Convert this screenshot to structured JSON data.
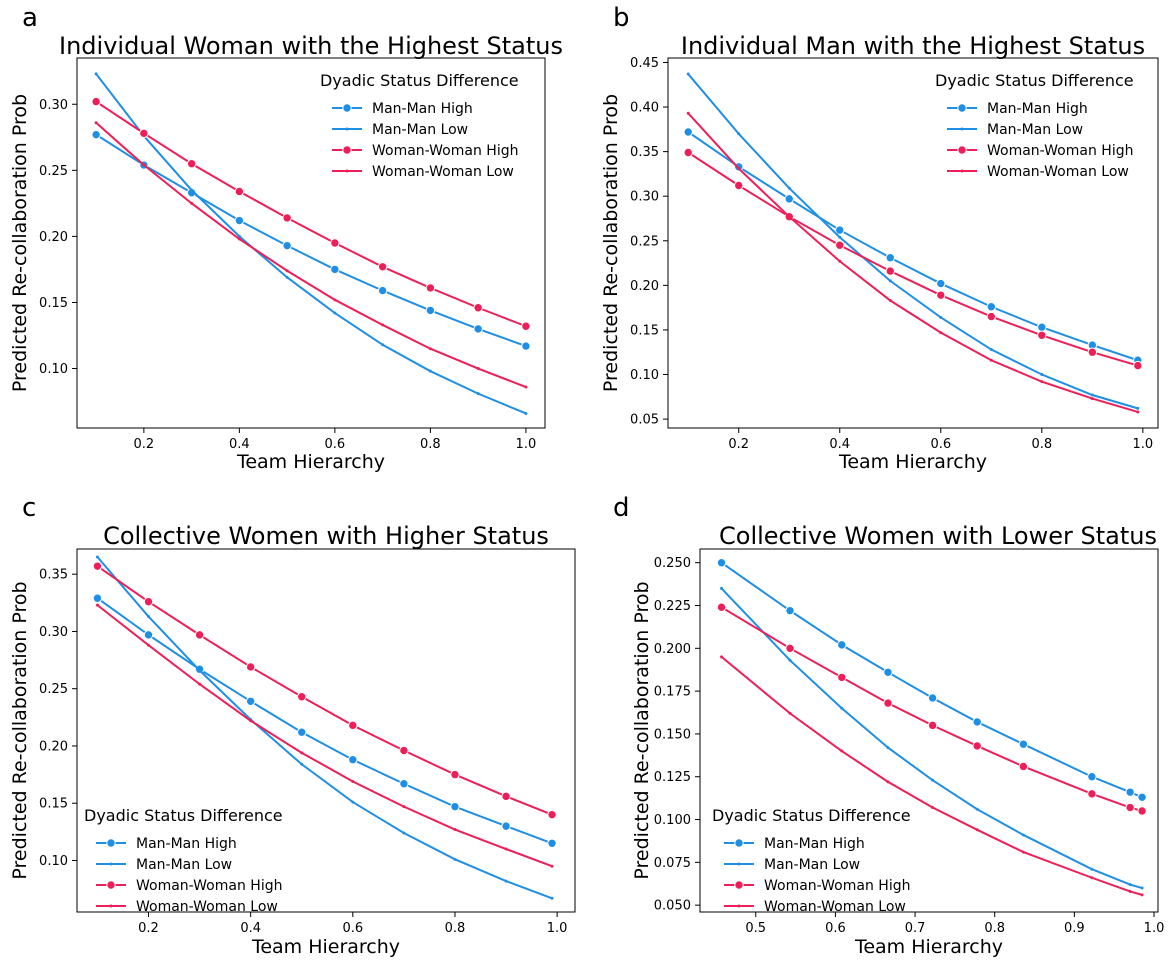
{
  "colors": {
    "man_man": "#1f8fe5",
    "woman_woman": "#ee1f58"
  },
  "chart_data": [
    {
      "type": "line",
      "panel": "a",
      "title": "Individual Woman with the Highest Status",
      "xlabel": "Team Hierarchy",
      "ylabel": "Predicted Re-collaboration Prob",
      "xlim": [
        0.06,
        1.04
      ],
      "ylim": [
        0.055,
        0.335
      ],
      "xticks": [
        0.2,
        0.4,
        0.6,
        0.8,
        1.0
      ],
      "xtick_labels": [
        "0.2",
        "0.4",
        "0.6",
        "0.8",
        "1.0"
      ],
      "yticks": [
        0.1,
        0.15,
        0.2,
        0.25,
        0.3
      ],
      "ytick_labels": [
        "0.10",
        "0.15",
        "0.20",
        "0.25",
        "0.30"
      ],
      "legend": {
        "title": "Dyadic Status Difference",
        "placement": "top-right"
      },
      "series": [
        {
          "name": "Man-Man High",
          "color": "#1f8fe5",
          "marker": "circle",
          "x": [
            0.1,
            0.2,
            0.3,
            0.4,
            0.5,
            0.6,
            0.7,
            0.8,
            0.9,
            1.0
          ],
          "y": [
            0.277,
            0.254,
            0.233,
            0.212,
            0.193,
            0.175,
            0.159,
            0.144,
            0.13,
            0.117
          ]
        },
        {
          "name": "Man-Man Low",
          "color": "#1f8fe5",
          "marker": "dot",
          "x": [
            0.1,
            0.2,
            0.3,
            0.4,
            0.5,
            0.6,
            0.7,
            0.8,
            0.9,
            1.0
          ],
          "y": [
            0.323,
            0.276,
            0.235,
            0.2,
            0.169,
            0.142,
            0.118,
            0.098,
            0.081,
            0.066
          ]
        },
        {
          "name": "Woman-Woman High",
          "color": "#ee1f58",
          "marker": "circle",
          "x": [
            0.1,
            0.2,
            0.3,
            0.4,
            0.5,
            0.6,
            0.7,
            0.8,
            0.9,
            1.0
          ],
          "y": [
            0.302,
            0.278,
            0.255,
            0.234,
            0.214,
            0.195,
            0.177,
            0.161,
            0.146,
            0.132
          ]
        },
        {
          "name": "Woman-Woman Low",
          "color": "#ee1f58",
          "marker": "dot",
          "x": [
            0.1,
            0.2,
            0.3,
            0.4,
            0.5,
            0.6,
            0.7,
            0.8,
            0.9,
            1.0
          ],
          "y": [
            0.286,
            0.254,
            0.225,
            0.198,
            0.174,
            0.152,
            0.133,
            0.115,
            0.1,
            0.086
          ]
        }
      ]
    },
    {
      "type": "line",
      "panel": "b",
      "title": "Individual Man with the Highest Status",
      "xlabel": "Team Hierarchy",
      "ylabel": "Predicted Re-collaboration Prob",
      "xlim": [
        0.06,
        1.03
      ],
      "ylim": [
        0.04,
        0.455
      ],
      "xticks": [
        0.2,
        0.4,
        0.6,
        0.8,
        1.0
      ],
      "xtick_labels": [
        "0.2",
        "0.4",
        "0.6",
        "0.8",
        "1.0"
      ],
      "yticks": [
        0.05,
        0.1,
        0.15,
        0.2,
        0.25,
        0.3,
        0.35,
        0.4,
        0.45
      ],
      "ytick_labels": [
        "0.05",
        "0.10",
        "0.15",
        "0.20",
        "0.25",
        "0.30",
        "0.35",
        "0.40",
        "0.45"
      ],
      "legend": {
        "title": "Dyadic Status Difference",
        "placement": "top-right"
      },
      "series": [
        {
          "name": "Man-Man High",
          "color": "#1f8fe5",
          "marker": "circle",
          "x": [
            0.1,
            0.2,
            0.3,
            0.4,
            0.5,
            0.6,
            0.7,
            0.8,
            0.9,
            0.99
          ],
          "y": [
            0.372,
            0.333,
            0.297,
            0.262,
            0.231,
            0.202,
            0.176,
            0.153,
            0.133,
            0.116
          ]
        },
        {
          "name": "Man-Man Low",
          "color": "#1f8fe5",
          "marker": "dot",
          "x": [
            0.1,
            0.2,
            0.3,
            0.4,
            0.5,
            0.6,
            0.7,
            0.8,
            0.9,
            0.99
          ],
          "y": [
            0.437,
            0.37,
            0.309,
            0.254,
            0.205,
            0.164,
            0.128,
            0.1,
            0.077,
            0.062
          ]
        },
        {
          "name": "Woman-Woman High",
          "color": "#ee1f58",
          "marker": "circle",
          "x": [
            0.1,
            0.2,
            0.3,
            0.4,
            0.5,
            0.6,
            0.7,
            0.8,
            0.9,
            0.99
          ],
          "y": [
            0.349,
            0.312,
            0.277,
            0.245,
            0.216,
            0.189,
            0.165,
            0.144,
            0.125,
            0.11
          ]
        },
        {
          "name": "Woman-Woman Low",
          "color": "#ee1f58",
          "marker": "dot",
          "x": [
            0.1,
            0.2,
            0.3,
            0.4,
            0.5,
            0.6,
            0.7,
            0.8,
            0.9,
            0.99
          ],
          "y": [
            0.393,
            0.331,
            0.277,
            0.227,
            0.183,
            0.147,
            0.116,
            0.092,
            0.073,
            0.058
          ]
        }
      ]
    },
    {
      "type": "line",
      "panel": "c",
      "title": "Collective Women with Higher Status",
      "xlabel": "Team Hierarchy",
      "ylabel": "Predicted Re-collaboration Prob",
      "xlim": [
        0.06,
        1.035
      ],
      "ylim": [
        0.055,
        0.372
      ],
      "xticks": [
        0.2,
        0.4,
        0.6,
        0.8,
        1.0
      ],
      "xtick_labels": [
        "0.2",
        "0.4",
        "0.6",
        "0.8",
        "1.0"
      ],
      "yticks": [
        0.1,
        0.15,
        0.2,
        0.25,
        0.3,
        0.35
      ],
      "ytick_labels": [
        "0.10",
        "0.15",
        "0.20",
        "0.25",
        "0.30",
        "0.35"
      ],
      "legend": {
        "title": "Dyadic Status Difference",
        "placement": "bottom-left"
      },
      "series": [
        {
          "name": "Man-Man High",
          "color": "#1f8fe5",
          "marker": "circle",
          "x": [
            0.1,
            0.2,
            0.3,
            0.4,
            0.5,
            0.6,
            0.7,
            0.8,
            0.9,
            0.99
          ],
          "y": [
            0.329,
            0.297,
            0.267,
            0.239,
            0.212,
            0.188,
            0.167,
            0.147,
            0.13,
            0.115
          ]
        },
        {
          "name": "Man-Man Low",
          "color": "#1f8fe5",
          "marker": "dot",
          "x": [
            0.1,
            0.2,
            0.3,
            0.4,
            0.5,
            0.6,
            0.7,
            0.8,
            0.9,
            0.99
          ],
          "y": [
            0.365,
            0.313,
            0.266,
            0.223,
            0.184,
            0.151,
            0.124,
            0.101,
            0.082,
            0.067
          ]
        },
        {
          "name": "Woman-Woman High",
          "color": "#ee1f58",
          "marker": "circle",
          "x": [
            0.1,
            0.2,
            0.3,
            0.4,
            0.5,
            0.6,
            0.7,
            0.8,
            0.9,
            0.99
          ],
          "y": [
            0.357,
            0.326,
            0.297,
            0.269,
            0.243,
            0.218,
            0.196,
            0.175,
            0.156,
            0.14
          ]
        },
        {
          "name": "Woman-Woman Low",
          "color": "#ee1f58",
          "marker": "dot",
          "x": [
            0.1,
            0.2,
            0.3,
            0.4,
            0.5,
            0.6,
            0.7,
            0.8,
            0.9,
            0.99
          ],
          "y": [
            0.323,
            0.288,
            0.254,
            0.222,
            0.194,
            0.169,
            0.147,
            0.127,
            0.11,
            0.095
          ]
        }
      ]
    },
    {
      "type": "line",
      "panel": "d",
      "title": "Collective Women with Lower Status",
      "xlabel": "Team Hierarchy",
      "ylabel": "Predicted Re-collaboration Prob",
      "xlim": [
        0.43,
        1.005
      ],
      "ylim": [
        0.046,
        0.258
      ],
      "xticks": [
        0.5,
        0.6,
        0.7,
        0.8,
        0.9,
        1.0
      ],
      "xtick_labels": [
        "0.5",
        "0.6",
        "0.7",
        "0.8",
        "0.9",
        "1.0"
      ],
      "yticks": [
        0.05,
        0.075,
        0.1,
        0.125,
        0.15,
        0.175,
        0.2,
        0.225,
        0.25
      ],
      "ytick_labels": [
        "0.050",
        "0.075",
        "0.100",
        "0.125",
        "0.150",
        "0.175",
        "0.200",
        "0.225",
        "0.250"
      ],
      "legend": {
        "title": "Dyadic Status Difference",
        "placement": "bottom-left"
      },
      "series": [
        {
          "name": "Man-Man High",
          "color": "#1f8fe5",
          "marker": "circle",
          "x": [
            0.457,
            0.543,
            0.608,
            0.666,
            0.722,
            0.778,
            0.836,
            0.922,
            0.97,
            0.985
          ],
          "y": [
            0.25,
            0.222,
            0.202,
            0.186,
            0.171,
            0.157,
            0.144,
            0.125,
            0.116,
            0.113
          ]
        },
        {
          "name": "Man-Man Low",
          "color": "#1f8fe5",
          "marker": "dot",
          "x": [
            0.457,
            0.543,
            0.608,
            0.666,
            0.722,
            0.778,
            0.836,
            0.922,
            0.97,
            0.985
          ],
          "y": [
            0.235,
            0.193,
            0.165,
            0.142,
            0.123,
            0.106,
            0.091,
            0.071,
            0.062,
            0.06
          ]
        },
        {
          "name": "Woman-Woman High",
          "color": "#ee1f58",
          "marker": "circle",
          "x": [
            0.457,
            0.543,
            0.608,
            0.666,
            0.722,
            0.778,
            0.836,
            0.922,
            0.97,
            0.985
          ],
          "y": [
            0.224,
            0.2,
            0.183,
            0.168,
            0.155,
            0.143,
            0.131,
            0.115,
            0.107,
            0.105
          ]
        },
        {
          "name": "Woman-Woman Low",
          "color": "#ee1f58",
          "marker": "dot",
          "x": [
            0.457,
            0.543,
            0.608,
            0.666,
            0.722,
            0.778,
            0.836,
            0.922,
            0.97,
            0.985
          ],
          "y": [
            0.195,
            0.162,
            0.14,
            0.122,
            0.107,
            0.094,
            0.081,
            0.066,
            0.058,
            0.056
          ]
        }
      ]
    }
  ]
}
